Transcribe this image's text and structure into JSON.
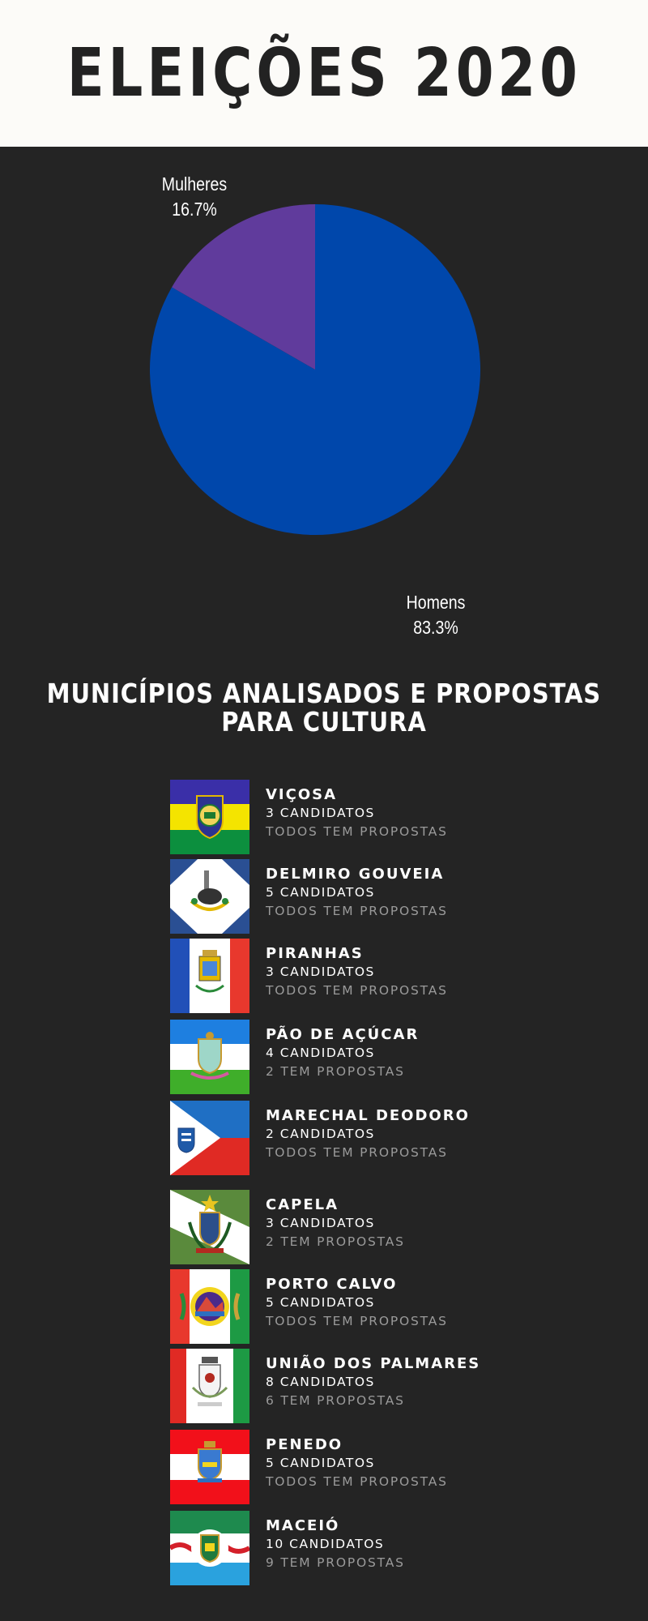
{
  "header": {
    "title": "ELEIÇÕES 2020"
  },
  "chart_data": {
    "type": "pie",
    "slices": [
      {
        "label": "Homens",
        "value": 83.3,
        "display": "83.3%",
        "color": "#0047ab"
      },
      {
        "label": "Mulheres",
        "value": 16.7,
        "display": "16.7%",
        "color": "#603b9c"
      }
    ]
  },
  "section": {
    "title_line1": "MUNICÍPIOS ANALISADOS E PROPOSTAS",
    "title_line2": "PARA CULTURA"
  },
  "municipios": [
    {
      "name": "VIÇOSA",
      "candidatos": "3 CANDIDATOS",
      "propostas": "TODOS TEM PROPOSTAS"
    },
    {
      "name": "DELMIRO GOUVEIA",
      "candidatos": "5 CANDIDATOS",
      "propostas": "TODOS TEM PROPOSTAS"
    },
    {
      "name": "PIRANHAS",
      "candidatos": "3 CANDIDATOS",
      "propostas": "TODOS TEM PROPOSTAS"
    },
    {
      "name": "PÃO DE AÇÚCAR",
      "candidatos": "4 CANDIDATOS",
      "propostas": "2 TEM PROPOSTAS"
    },
    {
      "name": "MARECHAL DEODORO",
      "candidatos": "2 CANDIDATOS",
      "propostas": "TODOS TEM PROPOSTAS"
    },
    {
      "name": "CAPELA",
      "candidatos": "3 CANDIDATOS",
      "propostas": "2 TEM PROPOSTAS"
    },
    {
      "name": "PORTO CALVO",
      "candidatos": "5 CANDIDATOS",
      "propostas": "TODOS TEM PROPOSTAS"
    },
    {
      "name": "UNIÃO DOS PALMARES",
      "candidatos": "8 CANDIDATOS",
      "propostas": "6 TEM PROPOSTAS"
    },
    {
      "name": "PENEDO",
      "candidatos": "5 CANDIDATOS",
      "propostas": "TODOS TEM PROPOSTAS"
    },
    {
      "name": "MACEIÓ",
      "candidatos": "10 CANDIDATOS",
      "propostas": "9 TEM PROPOSTAS"
    }
  ]
}
